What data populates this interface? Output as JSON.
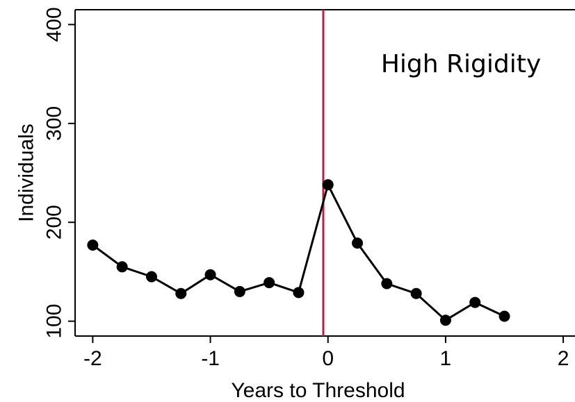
{
  "chart_data": {
    "type": "line",
    "title": "",
    "xlabel": "Years to Threshold",
    "ylabel": "Individuals",
    "annotation": "High Rigidity",
    "xlim": [
      -2.15,
      2.1
    ],
    "ylim": [
      85,
      415
    ],
    "xticks": [
      -2,
      -1,
      0,
      1,
      2
    ],
    "xtick_labels": [
      "-2",
      "-1",
      "0",
      "1",
      "2"
    ],
    "yticks": [
      100,
      200,
      300,
      400
    ],
    "ytick_labels": [
      "100",
      "200",
      "300",
      "400"
    ],
    "grid": false,
    "legend": "none",
    "threshold_x": -0.04,
    "colors": {
      "series": "#000000",
      "threshold": "#c8194b"
    },
    "series": [
      {
        "x": [
          -2,
          -1.75,
          -1.5,
          -1.25,
          -1,
          -0.75,
          -0.5,
          -0.25,
          0,
          0.25,
          0.5,
          0.75,
          1,
          1.25,
          1.5
        ],
        "values": [
          177,
          155,
          145,
          128,
          147,
          130,
          139,
          129,
          238,
          179,
          138,
          128,
          101,
          119,
          105
        ]
      }
    ]
  }
}
